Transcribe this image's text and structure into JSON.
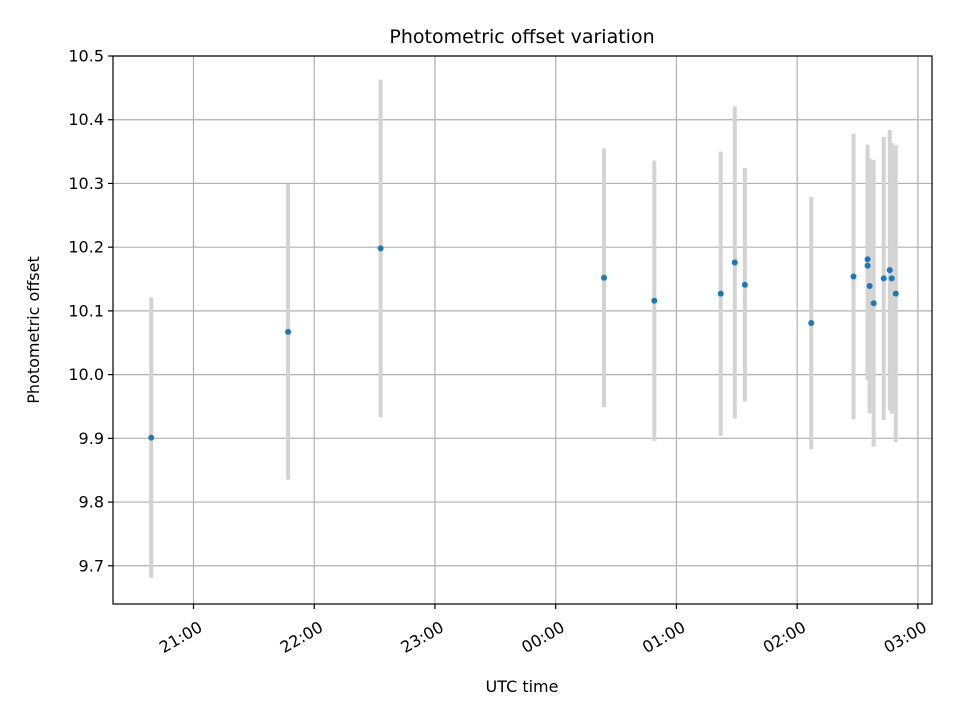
{
  "chart_data": {
    "type": "scatter",
    "title": "Photometric offset variation",
    "xlabel": "UTC time",
    "ylabel": "Photometric offset",
    "x_type": "time",
    "x_ticks": [
      "21:00",
      "22:00",
      "23:00",
      "00:00",
      "01:00",
      "02:00",
      "03:00"
    ],
    "x_range": [
      "20:20",
      "03:07"
    ],
    "ylim": [
      9.64,
      10.5
    ],
    "y_ticks": [
      "9.7",
      "9.8",
      "9.9",
      "10.0",
      "10.1",
      "10.2",
      "10.3",
      "10.4",
      "10.5"
    ],
    "grid": true,
    "marker_color": "#1f77b4",
    "errorbar_color": "#d3d3d3",
    "points": [
      {
        "time": "20:39",
        "y": 9.901,
        "err": 0.22
      },
      {
        "time": "21:47",
        "y": 10.067,
        "err": 0.232
      },
      {
        "time": "22:33",
        "y": 10.198,
        "err": 0.265
      },
      {
        "time": "00:24",
        "y": 10.152,
        "err": 0.203
      },
      {
        "time": "00:49",
        "y": 10.116,
        "err": 0.22
      },
      {
        "time": "01:22",
        "y": 10.127,
        "err": 0.223
      },
      {
        "time": "01:29",
        "y": 10.176,
        "err": 0.245
      },
      {
        "time": "01:34",
        "y": 10.141,
        "err": 0.183
      },
      {
        "time": "02:07",
        "y": 10.081,
        "err": 0.198
      },
      {
        "time": "02:28",
        "y": 10.154,
        "err": 0.224
      },
      {
        "time": "02:35",
        "y": 10.181,
        "err": 0.18
      },
      {
        "time": "02:35",
        "y": 10.171,
        "err": 0.18
      },
      {
        "time": "02:36",
        "y": 10.139,
        "err": 0.2
      },
      {
        "time": "02:38",
        "y": 10.112,
        "err": 0.225
      },
      {
        "time": "02:43",
        "y": 10.151,
        "err": 0.222
      },
      {
        "time": "02:46",
        "y": 10.164,
        "err": 0.22
      },
      {
        "time": "02:47",
        "y": 10.151,
        "err": 0.212
      },
      {
        "time": "02:49",
        "y": 10.127,
        "err": 0.233
      }
    ]
  }
}
